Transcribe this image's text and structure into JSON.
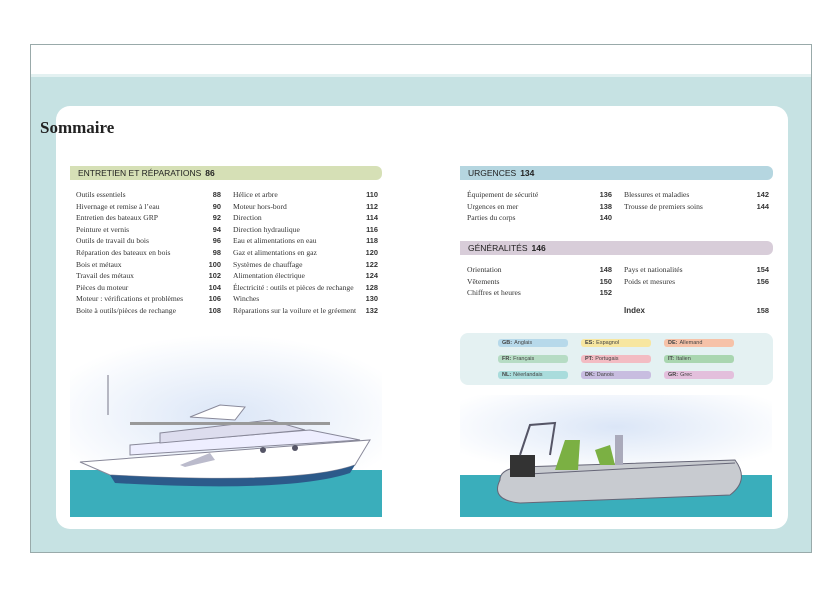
{
  "title": "Sommaire",
  "sections": {
    "entretien": {
      "label": "ENTRETIEN ET RÉPARATIONS",
      "page": "86",
      "color": "#d6e0b6",
      "left": [
        [
          "Outils essentiels",
          "88"
        ],
        [
          "Hivernage et remise à l’eau",
          "90"
        ],
        [
          "Entretien des bateaux GRP",
          "92"
        ],
        [
          "Peinture et vernis",
          "94"
        ],
        [
          "Outils de travail du bois",
          "96"
        ],
        [
          "Réparation des bateaux en bois",
          "98"
        ],
        [
          "Bois et métaux",
          "100"
        ],
        [
          "Travail des métaux",
          "102"
        ],
        [
          "Pièces du moteur",
          "104"
        ],
        [
          "Moteur : vérifications et problèmes",
          "106"
        ],
        [
          "Boite à outils/pièces de rechange",
          "108"
        ]
      ],
      "right": [
        [
          "Hélice et arbre",
          "110"
        ],
        [
          "Moteur hors-bord",
          "112"
        ],
        [
          "Direction",
          "114"
        ],
        [
          "Direction hydraulique",
          "116"
        ],
        [
          "Eau et alimentations en eau",
          "118"
        ],
        [
          "Gaz et alimentations en gaz",
          "120"
        ],
        [
          "Systèmes de chauffage",
          "122"
        ],
        [
          "Alimentation électrique",
          "124"
        ],
        [
          "Électricité : outils et pièces de rechange",
          "128"
        ],
        [
          "Winches",
          "130"
        ],
        [
          "Réparations sur la voilure et le gréement",
          "132"
        ]
      ]
    },
    "urgences": {
      "label": "URGENCES",
      "page": "134",
      "color": "#b5d6e0",
      "left": [
        [
          "Équipement de sécurité",
          "136"
        ],
        [
          "Urgences en mer",
          "138"
        ],
        [
          "Parties du corps",
          "140"
        ]
      ],
      "right": [
        [
          "Blessures et maladies",
          "142"
        ],
        [
          "Trousse de premiers soins",
          "144"
        ]
      ]
    },
    "generalites": {
      "label": "GÉNÉRALITÉS",
      "page": "146",
      "color": "#d8cdd9",
      "left": [
        [
          "Orientation",
          "148"
        ],
        [
          "Vêtements",
          "150"
        ],
        [
          "Chiffres et heures",
          "152"
        ]
      ],
      "right": [
        [
          "Pays et nationalités",
          "154"
        ],
        [
          "Poids et mesures",
          "156"
        ]
      ]
    }
  },
  "index": {
    "label": "Index",
    "page": "158"
  },
  "languages": [
    {
      "code": "GB:",
      "name": "Anglais",
      "color": "#b7d9ea"
    },
    {
      "code": "ES:",
      "name": "Espagnol",
      "color": "#f7e6a0"
    },
    {
      "code": "DE:",
      "name": "Allemand",
      "color": "#f6c2a8"
    },
    {
      "code": "FR:",
      "name": "Français",
      "color": "#b6dcc4"
    },
    {
      "code": "PT:",
      "name": "Portugais",
      "color": "#f3bcc3"
    },
    {
      "code": "IT:",
      "name": "Italien",
      "color": "#a9d6b0"
    },
    {
      "code": "NL:",
      "name": "Néerlandais",
      "color": "#a9dcdc"
    },
    {
      "code": "DK:",
      "name": "Danois",
      "color": "#c8bde0"
    },
    {
      "code": "GR:",
      "name": "Grec",
      "color": "#e3bfdc"
    }
  ],
  "colors": {
    "background": "#c6e2e3",
    "sea": "#3aaebb"
  }
}
